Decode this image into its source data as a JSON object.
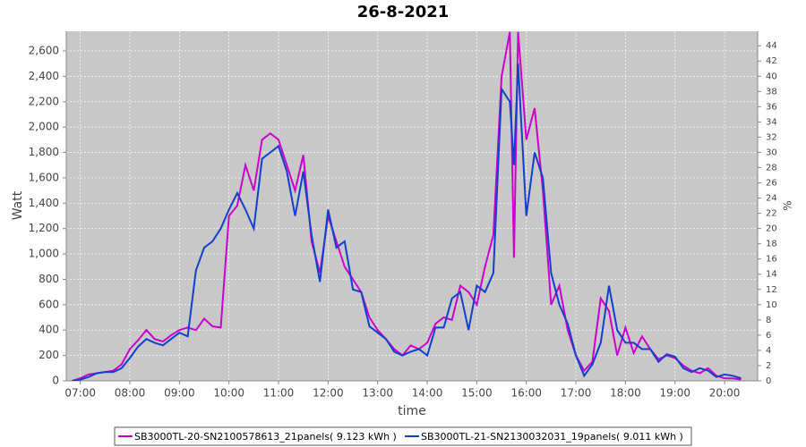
{
  "chart_data": {
    "type": "line",
    "title": "26-8-2021",
    "xlabel": "time",
    "ylabel": "Watt",
    "y2label": "%",
    "x": [
      "06:50",
      "07:00",
      "07:10",
      "07:20",
      "07:30",
      "07:40",
      "07:50",
      "08:00",
      "08:10",
      "08:20",
      "08:30",
      "08:40",
      "08:50",
      "09:00",
      "09:10",
      "09:20",
      "09:30",
      "09:40",
      "09:50",
      "10:00",
      "10:10",
      "10:20",
      "10:30",
      "10:40",
      "10:50",
      "11:00",
      "11:10",
      "11:20",
      "11:30",
      "11:40",
      "11:50",
      "12:00",
      "12:10",
      "12:20",
      "12:30",
      "12:40",
      "12:50",
      "13:00",
      "13:10",
      "13:20",
      "13:30",
      "13:40",
      "13:50",
      "14:00",
      "14:10",
      "14:20",
      "14:30",
      "14:40",
      "14:50",
      "15:00",
      "15:10",
      "15:20",
      "15:30",
      "15:40",
      "15:45",
      "15:50",
      "16:00",
      "16:10",
      "16:20",
      "16:30",
      "16:40",
      "16:50",
      "17:00",
      "17:10",
      "17:20",
      "17:30",
      "17:40",
      "17:50",
      "18:00",
      "18:10",
      "18:20",
      "18:30",
      "18:40",
      "18:50",
      "19:00",
      "19:10",
      "19:20",
      "19:30",
      "19:40",
      "19:50",
      "20:00",
      "20:10",
      "20:20"
    ],
    "series": [
      {
        "name": "SB3000TL-20-SN2100578613_21panels( 9.123 kWh )",
        "color": "#cc00cc",
        "values": [
          0,
          20,
          50,
          60,
          70,
          80,
          130,
          250,
          320,
          400,
          330,
          310,
          360,
          400,
          420,
          400,
          490,
          430,
          420,
          1300,
          1380,
          1700,
          1500,
          1900,
          1950,
          1900,
          1700,
          1500,
          1780,
          1100,
          850,
          1300,
          1100,
          900,
          800,
          700,
          500,
          400,
          330,
          250,
          200,
          280,
          250,
          300,
          450,
          500,
          480,
          750,
          700,
          600,
          900,
          1150,
          2400,
          2750,
          970,
          2750,
          1900,
          2150,
          1500,
          600,
          750,
          400,
          200,
          80,
          150,
          650,
          550,
          200,
          420,
          220,
          350,
          250,
          170,
          200,
          180,
          120,
          80,
          60,
          100,
          40,
          20,
          20,
          10
        ]
      },
      {
        "name": "SB3000TL-21-SN2130032031_19panels( 9.011 kWh )",
        "color": "#1040cc",
        "values": [
          0,
          10,
          30,
          60,
          70,
          70,
          100,
          180,
          270,
          330,
          300,
          280,
          330,
          380,
          350,
          870,
          1050,
          1100,
          1200,
          1350,
          1480,
          1350,
          1200,
          1750,
          1800,
          1850,
          1650,
          1300,
          1650,
          1150,
          780,
          1350,
          1050,
          1100,
          720,
          700,
          430,
          380,
          330,
          230,
          200,
          230,
          250,
          200,
          420,
          420,
          650,
          700,
          400,
          750,
          700,
          850,
          2300,
          2200,
          1700,
          2500,
          1300,
          1800,
          1600,
          850,
          600,
          450,
          200,
          40,
          130,
          300,
          750,
          400,
          300,
          300,
          250,
          250,
          150,
          210,
          190,
          100,
          70,
          100,
          80,
          30,
          50,
          40,
          20
        ]
      }
    ],
    "xlim": [
      "06:43",
      "20:40"
    ],
    "xticks": [
      "07:00",
      "08:00",
      "09:00",
      "10:00",
      "11:00",
      "12:00",
      "13:00",
      "14:00",
      "15:00",
      "16:00",
      "17:00",
      "18:00",
      "19:00",
      "20:00"
    ],
    "ylim": [
      0,
      2755
    ],
    "yticks": [
      0,
      200,
      400,
      600,
      800,
      {
        "value": 1000,
        "label": "1,000"
      },
      {
        "value": 1200,
        "label": "1,200"
      },
      {
        "value": 1400,
        "label": "1,400"
      },
      {
        "value": 1600,
        "label": "1,600"
      },
      {
        "value": 1800,
        "label": "1,800"
      },
      {
        "value": 2000,
        "label": "2,000"
      },
      {
        "value": 2200,
        "label": "2,200"
      },
      {
        "value": 2400,
        "label": "2,400"
      },
      {
        "value": 2600,
        "label": "2,600"
      }
    ],
    "y2lim": [
      0,
      45.9
    ],
    "y2ticks": [
      0,
      2,
      4,
      6,
      8,
      10,
      12,
      14,
      16,
      18,
      20,
      22,
      24,
      26,
      28,
      30,
      32,
      34,
      36,
      38,
      40,
      42,
      44
    ],
    "grid": true
  }
}
